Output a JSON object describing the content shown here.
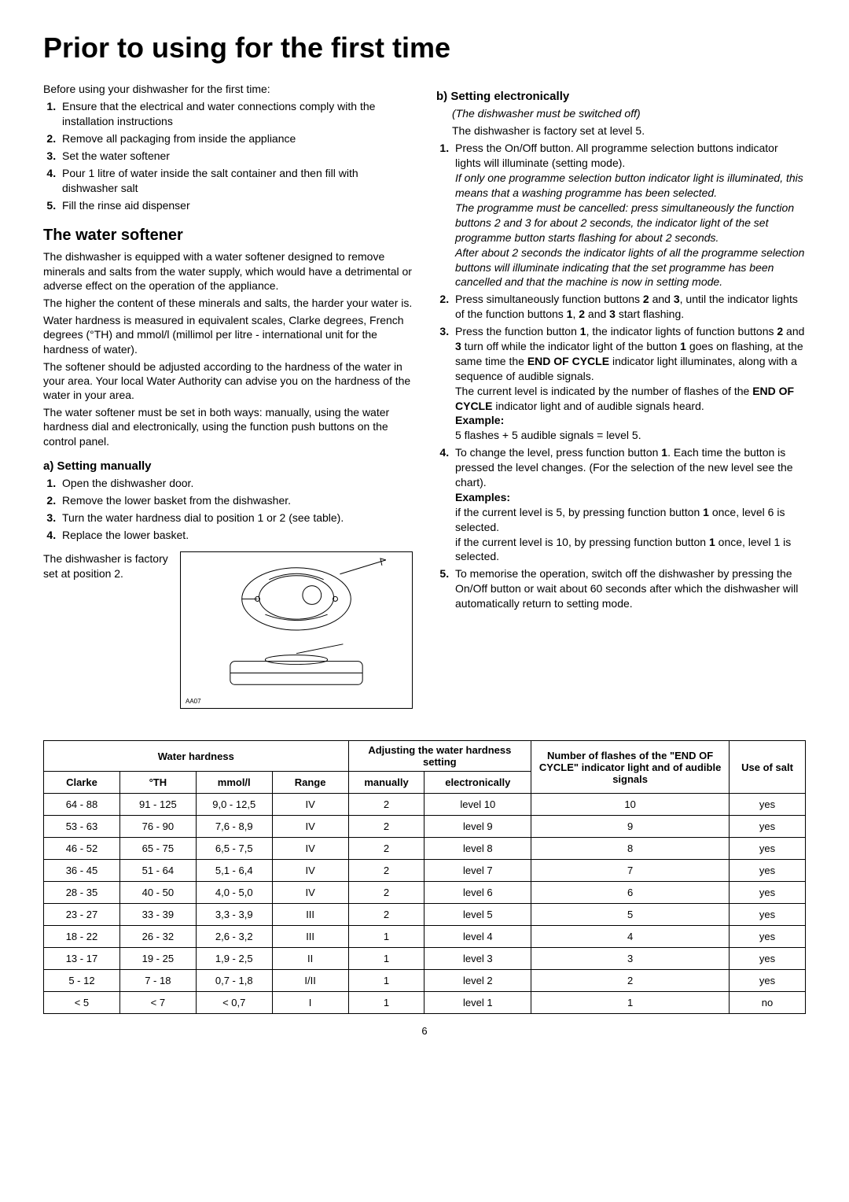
{
  "page_title": "Prior to using for the first time",
  "intro_text": "Before using your dishwasher for the first time:",
  "intro_list": [
    "Ensure that the electrical and water connections comply with the installation instructions",
    "Remove all packaging from inside the appliance",
    "Set the water softener",
    "Pour 1 litre of water inside the salt container and then fill with dishwasher salt",
    "Fill the rinse aid dispenser"
  ],
  "section_a": {
    "heading": "The water softener",
    "paras": [
      "The dishwasher is equipped with a water softener designed to remove minerals and salts from the water supply, which would have a detrimental or adverse effect on the operation of the appliance.",
      "The higher the content of these minerals and salts, the harder your water is.",
      "Water hardness is measured in equivalent scales, Clarke degrees, French degrees (°TH) and mmol/l (millimol per litre - international unit for the hardness of water).",
      "The softener should be adjusted according to the hardness of the water in your area. Your local Water Authority can advise you on the hardness of the water in your area.",
      "The water softener must be set in both ways: manually, using the water hardness dial and electronically, using the function push buttons on the control panel."
    ],
    "sub_a": {
      "heading": "a) Setting manually",
      "list": [
        "Open the dishwasher door.",
        "Remove the lower basket from the dishwasher.",
        "Turn the water hardness dial to position 1 or 2 (see table).",
        "Replace the lower basket."
      ],
      "factory_text": "The dishwasher is factory set at position 2.",
      "diagram_label": "AA07"
    }
  },
  "section_b": {
    "heading": "b) Setting electronically",
    "italic_line": "(The dishwasher must be switched off)",
    "factory_line": "The dishwasher is factory set at level 5.",
    "step1_plain": "Press the On/Off button. All programme selection buttons indicator lights will illuminate (setting mode).",
    "step1_italic": "If only one programme selection button indicator light is illuminated, this means that a washing programme has been selected.\nThe programme must be cancelled: press simultaneously the function buttons 2 and 3 for about 2 seconds, the indicator light of the set programme button starts flashing for about 2 seconds.\nAfter about 2 seconds the indicator lights of all the programme selection buttons will illuminate indicating that the set programme has been cancelled and that the machine is now in setting mode.",
    "step2": "Press simultaneously function buttons 2 and 3, until the indicator lights of the function buttons 1, 2 and 3 start flashing.",
    "step3_part1": "Press the function button 1, the indicator lights of function buttons 2 and 3 turn off while the indicator light of the button 1 goes on flashing, at the same time the END OF CYCLE indicator light illuminates, along with a sequence of audible signals.",
    "step3_part2": "The current level is indicated by the number of flashes of the END OF CYCLE indicator light and of audible signals heard.",
    "step3_example_label": "Example:",
    "step3_example_text": "5 flashes + 5 audible signals = level 5.",
    "step4_text": "To change the level, press function button 1. Each time the button is pressed the level changes. (For the selection of the new level see the chart).",
    "step4_examples_label": "Examples:",
    "step4_example1": "if the current level is 5, by pressing function button 1 once, level 6 is selected.",
    "step4_example2": "if the current level is 10, by pressing function button 1 once, level 1 is selected.",
    "step5": "To memorise the operation, switch off the dishwasher by pressing the On/Off button or wait about 60 seconds after which the dishwasher will automatically return to setting mode."
  },
  "table": {
    "header_group1": "Water hardness",
    "header_group2": "Adjusting the water hardness setting",
    "header_group3": "Number of flashes of the \"END OF CYCLE\" indicator light and of audible signals",
    "header_group4": "Use of salt",
    "sub_headers": [
      "Clarke",
      "°TH",
      "mmol/l",
      "Range",
      "manually",
      "electronically"
    ],
    "col_widths": [
      "10%",
      "10%",
      "10%",
      "10%",
      "10%",
      "14%",
      "26%",
      "10%"
    ],
    "rows": [
      [
        "64 - 88",
        "91 - 125",
        "9,0 - 12,5",
        "IV",
        "2",
        "level 10",
        "10",
        "yes"
      ],
      [
        "53 - 63",
        "76 - 90",
        "7,6 - 8,9",
        "IV",
        "2",
        "level 9",
        "9",
        "yes"
      ],
      [
        "46 - 52",
        "65 - 75",
        "6,5 - 7,5",
        "IV",
        "2",
        "level 8",
        "8",
        "yes"
      ],
      [
        "36 - 45",
        "51 - 64",
        "5,1 - 6,4",
        "IV",
        "2",
        "level 7",
        "7",
        "yes"
      ],
      [
        "28 - 35",
        "40 - 50",
        "4,0 - 5,0",
        "IV",
        "2",
        "level 6",
        "6",
        "yes"
      ],
      [
        "23 - 27",
        "33 - 39",
        "3,3 - 3,9",
        "III",
        "2",
        "level 5",
        "5",
        "yes"
      ],
      [
        "18 - 22",
        "26 - 32",
        "2,6 - 3,2",
        "III",
        "1",
        "level 4",
        "4",
        "yes"
      ],
      [
        "13 - 17",
        "19 - 25",
        "1,9 - 2,5",
        "II",
        "1",
        "level 3",
        "3",
        "yes"
      ],
      [
        "5 - 12",
        "7 - 18",
        "0,7 - 1,8",
        "I/II",
        "1",
        "level 2",
        "2",
        "yes"
      ],
      [
        "< 5",
        "< 7",
        "< 0,7",
        "I",
        "1",
        "level 1",
        "1",
        "no"
      ]
    ]
  },
  "page_number": "6"
}
